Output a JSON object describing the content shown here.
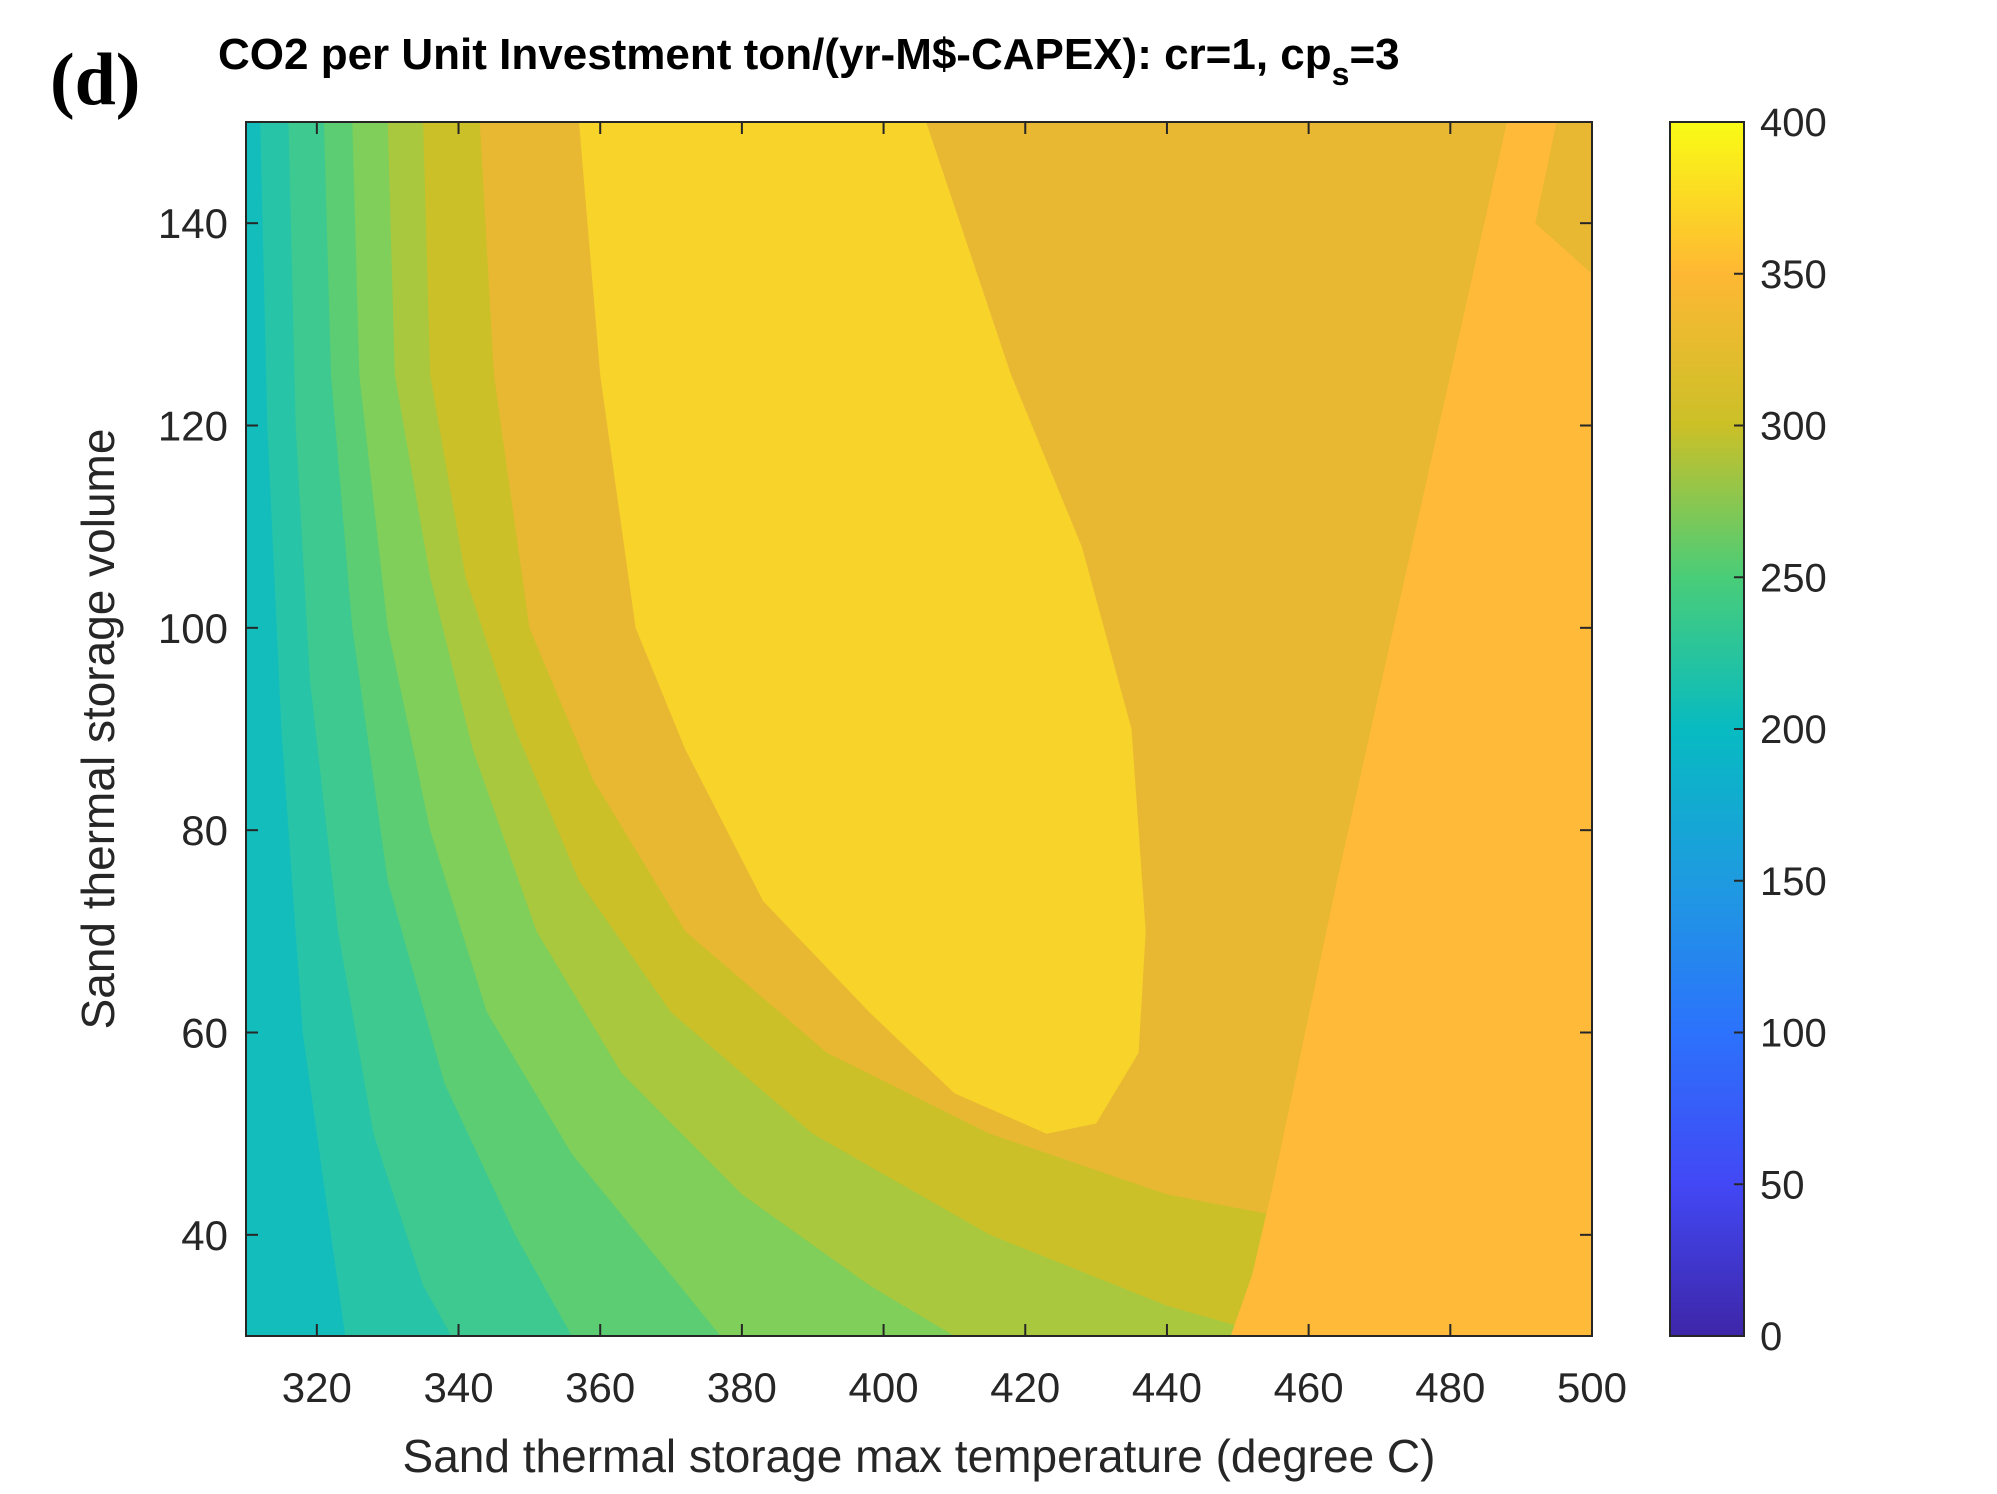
{
  "panel_label": "(d)",
  "title": {
    "main": "CO2 per Unit Investment ton/(yr-M$-CAPEX): cr=1, cp",
    "subscript": "s",
    "suffix": "=3"
  },
  "chart_data": {
    "type": "contourf",
    "xlabel": "Sand thermal storage max temperature (degree C)",
    "ylabel": "Sand thermal storage volume",
    "xlim": [
      310,
      500
    ],
    "ylim": [
      30,
      150
    ],
    "x_ticks": [
      320,
      340,
      360,
      380,
      400,
      420,
      440,
      460,
      480,
      500
    ],
    "y_ticks": [
      40,
      60,
      80,
      100,
      120,
      140
    ],
    "colorbar": {
      "range": [
        0,
        400
      ],
      "ticks": [
        0,
        50,
        100,
        150,
        200,
        250,
        300,
        350,
        400
      ],
      "colormap": "parula",
      "stops": [
        {
          "value": 0,
          "color": "#3e26a8"
        },
        {
          "value": 50,
          "color": "#4248f5"
        },
        {
          "value": 100,
          "color": "#2c72fc"
        },
        {
          "value": 150,
          "color": "#1e9be0"
        },
        {
          "value": 200,
          "color": "#07bbc1"
        },
        {
          "value": 250,
          "color": "#49cd78"
        },
        {
          "value": 300,
          "color": "#cbc027"
        },
        {
          "value": 350,
          "color": "#feb833"
        },
        {
          "value": 400,
          "color": "#f9fb15"
        }
      ]
    },
    "contour_levels": [
      {
        "level": 200,
        "color": "#13bdbc"
      },
      {
        "level": 220,
        "color": "#27c4a8"
      },
      {
        "level": 240,
        "color": "#3ec990"
      },
      {
        "level": 260,
        "color": "#5ccd72"
      },
      {
        "level": 280,
        "color": "#7fcf5a"
      },
      {
        "level": 300,
        "color": "#a9c83e"
      },
      {
        "level": 320,
        "color": "#cbc027"
      },
      {
        "level": 340,
        "color": "#e8b832"
      },
      {
        "level": 360,
        "color": "#feba38"
      },
      {
        "level": 380,
        "color": "#f8d32a"
      }
    ],
    "contour_boundaries": [
      {
        "above_level": 220,
        "points": [
          [
            312,
            150
          ],
          [
            313,
            120
          ],
          [
            315,
            90
          ],
          [
            318,
            60
          ],
          [
            322,
            40
          ],
          [
            324,
            30
          ]
        ]
      },
      {
        "above_level": 240,
        "points": [
          [
            316,
            150
          ],
          [
            317,
            120
          ],
          [
            319,
            95
          ],
          [
            323,
            70
          ],
          [
            328,
            50
          ],
          [
            335,
            35
          ],
          [
            339,
            30
          ]
        ]
      },
      {
        "above_level": 260,
        "points": [
          [
            321,
            150
          ],
          [
            322,
            125
          ],
          [
            325,
            100
          ],
          [
            330,
            75
          ],
          [
            338,
            55
          ],
          [
            348,
            40
          ],
          [
            356,
            30
          ]
        ]
      },
      {
        "above_level": 280,
        "points": [
          [
            325,
            150
          ],
          [
            326,
            125
          ],
          [
            330,
            100
          ],
          [
            336,
            80
          ],
          [
            344,
            62
          ],
          [
            356,
            48
          ],
          [
            370,
            36
          ],
          [
            377,
            30
          ]
        ]
      },
      {
        "above_level": 300,
        "points": [
          [
            330,
            150
          ],
          [
            331,
            125
          ],
          [
            336,
            105
          ],
          [
            342,
            88
          ],
          [
            351,
            70
          ],
          [
            363,
            56
          ],
          [
            380,
            44
          ],
          [
            398,
            35
          ],
          [
            410,
            30
          ]
        ]
      },
      {
        "above_level": 320,
        "points": [
          [
            335,
            150
          ],
          [
            336,
            125
          ],
          [
            341,
            105
          ],
          [
            348,
            90
          ],
          [
            357,
            75
          ],
          [
            370,
            62
          ],
          [
            390,
            50
          ],
          [
            415,
            40
          ],
          [
            440,
            33
          ],
          [
            455,
            30
          ]
        ]
      },
      {
        "above_level": 340,
        "points": [
          [
            343,
            150
          ],
          [
            345,
            125
          ],
          [
            350,
            100
          ],
          [
            359,
            85
          ],
          [
            372,
            70
          ],
          [
            392,
            58
          ],
          [
            415,
            50
          ],
          [
            440,
            44
          ],
          [
            462,
            41
          ],
          [
            478,
            38
          ],
          [
            492,
            36
          ],
          [
            500,
            35.5
          ]
        ]
      },
      {
        "above_level": 360,
        "points": [
          [
            488,
            150
          ],
          [
            480,
            125
          ],
          [
            472,
            100
          ],
          [
            464,
            75
          ],
          [
            458,
            55
          ],
          [
            455,
            45
          ],
          [
            452,
            36
          ],
          [
            449,
            30
          ],
          [
            500,
            30
          ],
          [
            500,
            150
          ]
        ]
      },
      {
        "above_level": 380,
        "points": [
          [
            357,
            150
          ],
          [
            360,
            125
          ],
          [
            365,
            100
          ],
          [
            372,
            88
          ],
          [
            383,
            73
          ],
          [
            398,
            62
          ],
          [
            410,
            54
          ],
          [
            423,
            50
          ],
          [
            430,
            51
          ],
          [
            436,
            58
          ],
          [
            437,
            70
          ],
          [
            435,
            90
          ],
          [
            428,
            108
          ],
          [
            418,
            125
          ],
          [
            406,
            150
          ]
        ]
      }
    ],
    "lower_regions": [
      {
        "level": 340,
        "points": [
          [
            500,
            150
          ],
          [
            495,
            150
          ],
          [
            492,
            140
          ],
          [
            500,
            135
          ]
        ]
      }
    ]
  }
}
